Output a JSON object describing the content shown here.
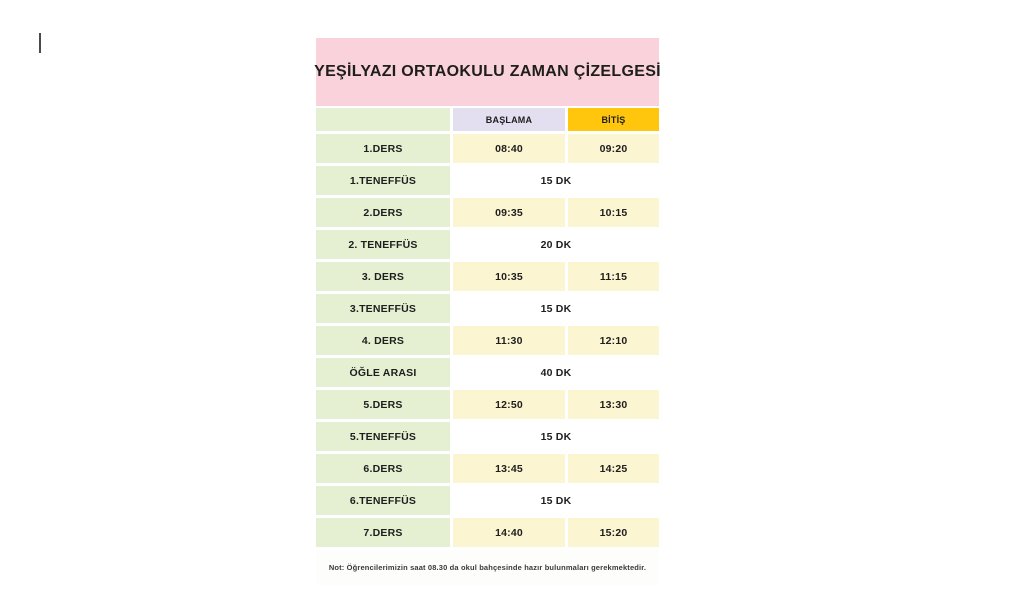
{
  "schedule": {
    "title": "YEŞİLYAZI ORTAOKULU ZAMAN ÇİZELGESİ",
    "columns": {
      "start": "BAŞLAMA",
      "end": "BİTİŞ"
    },
    "rows": [
      {
        "type": "lesson",
        "label": "1.DERS",
        "start": "08:40",
        "end": "09:20"
      },
      {
        "type": "break",
        "label": "1.TENEFFÜS",
        "duration": "15 DK"
      },
      {
        "type": "lesson",
        "label": "2.DERS",
        "start": "09:35",
        "end": "10:15"
      },
      {
        "type": "break",
        "label": "2. TENEFFÜS",
        "duration": "20 DK"
      },
      {
        "type": "lesson",
        "label": "3. DERS",
        "start": "10:35",
        "end": "11:15"
      },
      {
        "type": "break",
        "label": "3.TENEFFÜS",
        "duration": "15 DK"
      },
      {
        "type": "lesson",
        "label": "4. DERS",
        "start": "11:30",
        "end": "12:10"
      },
      {
        "type": "break",
        "label": "ÖĞLE ARASI",
        "duration": "40 DK"
      },
      {
        "type": "lesson",
        "label": "5.DERS",
        "start": "12:50",
        "end": "13:30"
      },
      {
        "type": "break",
        "label": "5.TENEFFÜS",
        "duration": "15 DK"
      },
      {
        "type": "lesson",
        "label": "6.DERS",
        "start": "13:45",
        "end": "14:25"
      },
      {
        "type": "break",
        "label": "6.TENEFFÜS",
        "duration": "15 DK"
      },
      {
        "type": "lesson",
        "label": "7.DERS",
        "start": "14:40",
        "end": "15:20"
      }
    ],
    "note": "Not: Öğrencilerimizin saat 08.30 da okul bahçesinde hazır bulunmaları gerekmektedir.",
    "colors": {
      "title_bg": "#f9d2db",
      "label_bg": "#e5f0d2",
      "start_header_bg": "#e4def1",
      "end_header_bg": "#ffc60d",
      "time_bg": "#fbf5d1",
      "break_bg": "#ffffff",
      "note_bg": "#fdfdfb",
      "text": "#1e1e1c",
      "note_text": "#3a3a38"
    }
  }
}
